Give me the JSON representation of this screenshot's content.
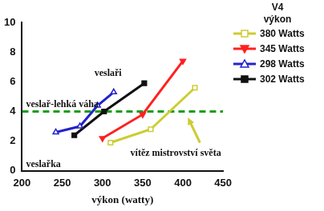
{
  "chart_data": {
    "type": "line",
    "x_label": "výkon (watty)",
    "legend_title": [
      "V4",
      "výkon"
    ],
    "legend": "right",
    "grid": false,
    "xlim": [
      200,
      450
    ],
    "xticks": [
      200,
      250,
      300,
      350,
      400,
      450
    ],
    "ylim": [
      0,
      10
    ],
    "yticks": [
      0,
      2,
      4,
      6,
      8,
      10
    ],
    "series": [
      {
        "name": "380 Watts",
        "color": "#cccc33",
        "marker": "square_open",
        "x": [
          310,
          360,
          415
        ],
        "values": [
          1.9,
          2.8,
          5.6
        ]
      },
      {
        "name": "345 Watts",
        "color": "#ff2020",
        "marker": "triangle_down",
        "x": [
          300,
          350,
          400
        ],
        "values": [
          2.2,
          3.8,
          7.4
        ]
      },
      {
        "name": "298 Watts",
        "color": "#2222cc",
        "marker": "triangle_open",
        "x": [
          242,
          272,
          294,
          314
        ],
        "values": [
          2.6,
          3.0,
          4.4,
          5.3
        ]
      },
      {
        "name": "302 Watts",
        "color": "#111111",
        "marker": "square",
        "x": [
          265,
          302,
          352
        ],
        "values": [
          2.4,
          4.0,
          5.9
        ]
      }
    ],
    "reference_line": {
      "y": 4,
      "label": "veslař-lehká váha",
      "color": "#1a9e1a",
      "line_style": "dashed"
    },
    "annotations": [
      "veslaři",
      "veslařka",
      "vítěz mistrovství světa"
    ]
  }
}
